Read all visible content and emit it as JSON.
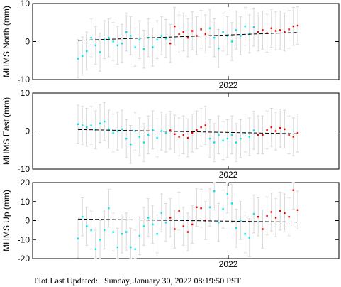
{
  "footer": {
    "label": "Plot Last Updated:",
    "timestamp": "Sunday, January 30, 2022 08:19:50 PST"
  },
  "colors": {
    "background_points": "#00e5ee",
    "recent_points": "#ee0000",
    "error_bars": "#d8d8d8",
    "trend_line": "#000000",
    "axes": "#000000"
  },
  "chart_data": [
    {
      "type": "scatter",
      "ylabel": "MHMS North (mm)",
      "ylim": [
        -10,
        10
      ],
      "yticks": [
        -10,
        0,
        10
      ],
      "xtick_label": "2022",
      "grid": false,
      "error_bar": 5,
      "trend": [
        [
          0,
          0.3
        ],
        [
          1,
          2.4
        ]
      ],
      "series": [
        {
          "color_key": "background_points",
          "x": [
            0.0,
            0.02,
            0.04,
            0.06,
            0.08,
            0.1,
            0.12,
            0.14,
            0.16,
            0.18,
            0.2,
            0.22,
            0.24,
            0.26,
            0.28,
            0.3,
            0.32,
            0.34,
            0.36,
            0.38,
            0.4,
            0.6,
            0.62,
            0.64,
            0.66,
            0.68,
            0.7,
            0.72,
            0.74,
            0.76,
            0.78,
            0.8
          ],
          "y": [
            -4.5,
            -3.8,
            -2.5,
            1.0,
            -1.0,
            -2.8,
            0.5,
            1.0,
            0.0,
            -1.0,
            -0.5,
            2.5,
            1.5,
            -1.5,
            0.5,
            -2.0,
            1.0,
            -1.5,
            0.5,
            1.5,
            0.8,
            3.5,
            1.0,
            -1.8,
            2.5,
            1.5,
            0.0,
            3.0,
            1.5,
            4.0,
            2.0,
            3.8
          ]
        },
        {
          "color_key": "recent_points",
          "x": [
            0.42,
            0.44,
            0.46,
            0.48,
            0.5,
            0.52,
            0.54,
            0.56,
            0.58,
            0.82,
            0.84,
            0.86,
            0.88,
            0.9,
            0.92,
            0.94,
            0.96,
            0.98,
            1.0
          ],
          "y": [
            -0.5,
            4.0,
            2.0,
            2.5,
            1.0,
            2.8,
            1.5,
            3.2,
            2.0,
            2.5,
            3.0,
            2.2,
            3.5,
            2.8,
            3.0,
            2.5,
            3.2,
            4.0,
            4.2
          ]
        }
      ]
    },
    {
      "type": "scatter",
      "ylabel": "MHMS East (mm)",
      "ylim": [
        -10,
        10
      ],
      "yticks": [
        -10,
        0,
        10
      ],
      "xtick_label": "2022",
      "grid": false,
      "error_bar": 5,
      "trend": [
        [
          0,
          0.4
        ],
        [
          1,
          -0.7
        ]
      ],
      "series": [
        {
          "color_key": "background_points",
          "x": [
            0.0,
            0.02,
            0.04,
            0.06,
            0.08,
            0.1,
            0.12,
            0.14,
            0.16,
            0.18,
            0.2,
            0.22,
            0.24,
            0.26,
            0.28,
            0.3,
            0.32,
            0.34,
            0.36,
            0.38,
            0.4,
            0.6,
            0.62,
            0.64,
            0.66,
            0.68,
            0.7,
            0.72,
            0.74,
            0.76,
            0.78,
            0.8
          ],
          "y": [
            1.8,
            1.5,
            1.0,
            1.5,
            0.3,
            2.0,
            2.5,
            0.5,
            -0.5,
            0.0,
            0.5,
            -2.0,
            -3.5,
            0.0,
            -1.5,
            -3.0,
            -1.0,
            0.3,
            -1.8,
            0.0,
            -0.5,
            -2.0,
            -3.0,
            -1.0,
            -2.5,
            -2.0,
            -1.0,
            -3.0,
            -2.0,
            -0.5,
            -1.5,
            0.2
          ]
        },
        {
          "color_key": "recent_points",
          "x": [
            0.42,
            0.44,
            0.46,
            0.48,
            0.5,
            0.52,
            0.54,
            0.56,
            0.58,
            0.82,
            0.84,
            0.86,
            0.88,
            0.9,
            0.92,
            0.94,
            0.96,
            0.98,
            1.0
          ],
          "y": [
            0.2,
            -0.8,
            -1.5,
            -1.0,
            -1.8,
            -0.5,
            0.3,
            1.0,
            1.5,
            -1.0,
            -1.0,
            0.3,
            1.0,
            0.0,
            0.8,
            0.5,
            -1.0,
            -1.5,
            -0.5
          ]
        }
      ]
    },
    {
      "type": "scatter",
      "ylabel": "MHMS Up (mm)",
      "ylim": [
        -20,
        20
      ],
      "yticks": [
        -20,
        -10,
        0,
        10,
        20
      ],
      "xtick_label": "2022",
      "grid": false,
      "error_bar": 10,
      "trend": [
        [
          0,
          0.8
        ],
        [
          1,
          -0.8
        ]
      ],
      "series": [
        {
          "color_key": "background_points",
          "x": [
            0.0,
            0.02,
            0.04,
            0.06,
            0.08,
            0.1,
            0.12,
            0.14,
            0.16,
            0.18,
            0.2,
            0.22,
            0.24,
            0.26,
            0.28,
            0.3,
            0.32,
            0.34,
            0.36,
            0.38,
            0.4,
            0.6,
            0.62,
            0.64,
            0.66,
            0.68,
            0.7,
            0.72,
            0.74,
            0.76,
            0.78,
            0.8
          ],
          "y": [
            -9.5,
            2.0,
            -3.0,
            -5.0,
            -15.0,
            -10.0,
            -5.0,
            6.5,
            -6.0,
            -14.0,
            -7.0,
            -6.0,
            -14.0,
            -15.0,
            -8.0,
            -3.0,
            1.5,
            -2.0,
            -7.0,
            4.0,
            -1.0,
            7.0,
            15.5,
            -1.0,
            6.0,
            14.0,
            9.0,
            -4.0,
            0.0,
            -7.0,
            -9.0,
            3.5
          ]
        },
        {
          "color_key": "recent_points",
          "x": [
            0.42,
            0.44,
            0.46,
            0.48,
            0.5,
            0.52,
            0.54,
            0.56,
            0.58,
            0.82,
            0.84,
            0.86,
            0.88,
            0.9,
            0.92,
            0.94,
            0.96,
            0.98,
            1.0
          ],
          "y": [
            1.5,
            -4.5,
            5.0,
            -3.0,
            -6.0,
            -2.0,
            7.0,
            6.5,
            0.0,
            2.0,
            -4.5,
            2.5,
            4.5,
            1.5,
            5.0,
            4.0,
            2.0,
            16.0,
            5.5
          ]
        }
      ]
    }
  ]
}
